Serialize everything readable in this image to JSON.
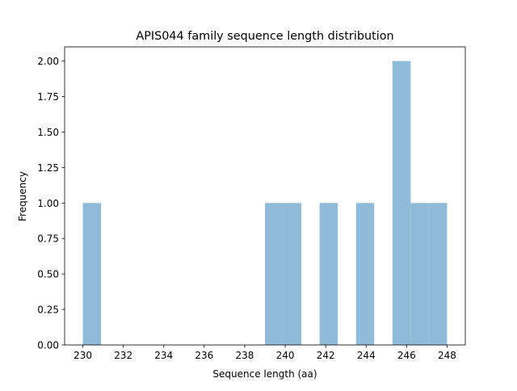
{
  "chart_data": {
    "type": "bar",
    "title": "APIS044 family sequence length distribution",
    "xlabel": "Sequence length (aa)",
    "ylabel": "Frequency",
    "bin_edges": [
      230.0,
      230.9,
      231.8,
      232.7,
      233.6,
      234.5,
      235.4,
      236.3,
      237.2,
      238.1,
      239.0,
      239.9,
      240.8,
      241.7,
      242.6,
      243.5,
      244.4,
      245.3,
      246.2,
      247.1,
      248.0
    ],
    "values": [
      1,
      0,
      0,
      0,
      0,
      0,
      0,
      0,
      0,
      0,
      1,
      1,
      0,
      1,
      0,
      1,
      0,
      2,
      1,
      1
    ],
    "xlim": [
      229.1,
      248.9
    ],
    "ylim": [
      0,
      2.1
    ],
    "xticks": [
      "230",
      "232",
      "234",
      "236",
      "238",
      "240",
      "242",
      "244",
      "246",
      "248"
    ],
    "yticks": [
      "0.00",
      "0.25",
      "0.50",
      "0.75",
      "1.00",
      "1.25",
      "1.50",
      "1.75",
      "2.00"
    ],
    "bar_color": "#8fbbd9",
    "grid": false
  }
}
